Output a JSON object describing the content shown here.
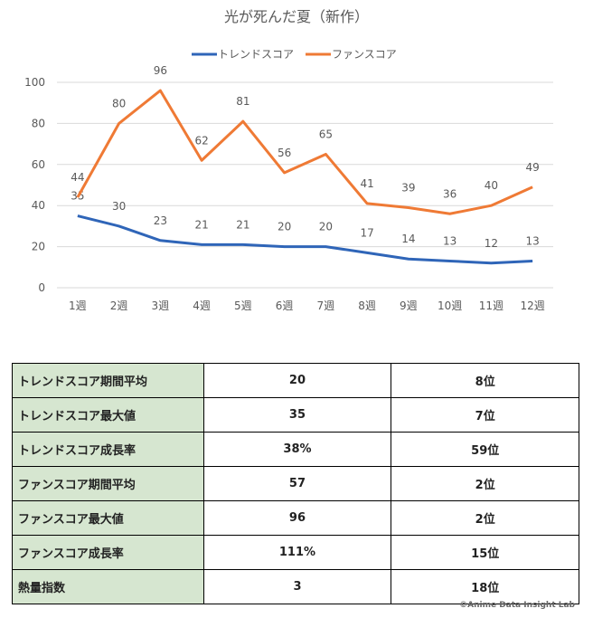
{
  "chart_data": {
    "type": "line",
    "title": "光が死んだ夏（新作）",
    "categories": [
      "1週",
      "2週",
      "3週",
      "4週",
      "5週",
      "6週",
      "7週",
      "8週",
      "9週",
      "10週",
      "11週",
      "12週"
    ],
    "series": [
      {
        "name": "トレンドスコア",
        "color": "#2f65b8",
        "values": [
          35,
          30,
          23,
          21,
          21,
          20,
          20,
          17,
          14,
          13,
          12,
          13
        ]
      },
      {
        "name": "ファンスコア",
        "color": "#ef7a35",
        "values": [
          44,
          80,
          96,
          62,
          81,
          56,
          65,
          41,
          39,
          36,
          40,
          49
        ]
      }
    ],
    "yticks": [
      0,
      20,
      40,
      60,
      80,
      100
    ],
    "ylim": [
      0,
      100
    ],
    "grid": true,
    "legend": "top"
  },
  "table": {
    "rows": [
      {
        "label": "トレンドスコア期間平均",
        "value": "20",
        "rank": "8位"
      },
      {
        "label": "トレンドスコア最大値",
        "value": "35",
        "rank": "7位"
      },
      {
        "label": "トレンドスコア成長率",
        "value": "38%",
        "rank": "59位"
      },
      {
        "label": "ファンスコア期間平均",
        "value": "57",
        "rank": "2位"
      },
      {
        "label": "ファンスコア最大値",
        "value": "96",
        "rank": "2位"
      },
      {
        "label": "ファンスコア成長率",
        "value": "111%",
        "rank": "15位"
      },
      {
        "label": "熱量指数",
        "value": "3",
        "rank": "18位"
      }
    ]
  },
  "credit": "©Anime Data Insight Lab"
}
